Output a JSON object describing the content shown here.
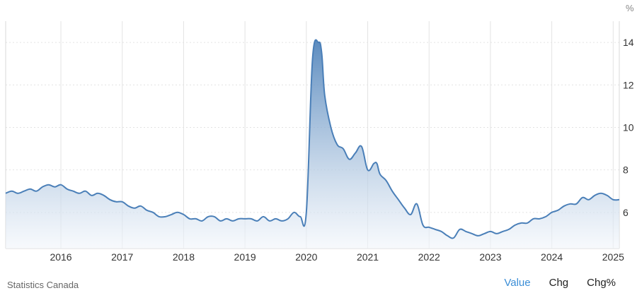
{
  "footer": {
    "source": "Statistics Canada",
    "tabs": [
      {
        "label": "Value",
        "active": true
      },
      {
        "label": "Chg",
        "active": false
      },
      {
        "label": "Chg%",
        "active": false
      }
    ]
  },
  "colors": {
    "line": "#4a7fb8",
    "fill_top": "#4a7fb8",
    "fill_bottom": "#f2f6fb",
    "grid": "#e3e3e3",
    "active_tab": "#3a8dd6"
  },
  "chart_data": {
    "type": "area",
    "unit": "%",
    "grid": true,
    "legend": "none",
    "x_ticks": [
      "2016",
      "2017",
      "2018",
      "2019",
      "2020",
      "2021",
      "2022",
      "2023",
      "2024",
      "2025"
    ],
    "y_ticks": [
      "6",
      "8",
      "10",
      "12",
      "14"
    ],
    "xlim": [
      2015.1,
      2025.1
    ],
    "ylim": [
      4.3,
      15.0
    ],
    "series": [
      {
        "x": [
          2015.1,
          2015.2,
          2015.3,
          2015.4,
          2015.5,
          2015.6,
          2015.7,
          2015.8,
          2015.9,
          2016.0,
          2016.1,
          2016.2,
          2016.3,
          2016.4,
          2016.5,
          2016.6,
          2016.7,
          2016.8,
          2016.9,
          2017.0,
          2017.1,
          2017.2,
          2017.3,
          2017.4,
          2017.5,
          2017.6,
          2017.7,
          2017.8,
          2017.9,
          2018.0,
          2018.1,
          2018.2,
          2018.3,
          2018.4,
          2018.5,
          2018.6,
          2018.7,
          2018.8,
          2018.9,
          2019.0,
          2019.1,
          2019.2,
          2019.3,
          2019.4,
          2019.5,
          2019.6,
          2019.7,
          2019.8,
          2019.9,
          2020.0,
          2020.1,
          2020.2,
          2020.25,
          2020.3,
          2020.4,
          2020.5,
          2020.6,
          2020.7,
          2020.8,
          2020.9,
          2021.0,
          2021.1,
          2021.15,
          2021.2,
          2021.3,
          2021.4,
          2021.5,
          2021.6,
          2021.7,
          2021.8,
          2021.9,
          2022.0,
          2022.1,
          2022.2,
          2022.3,
          2022.4,
          2022.5,
          2022.6,
          2022.7,
          2022.8,
          2022.9,
          2023.0,
          2023.1,
          2023.2,
          2023.3,
          2023.4,
          2023.5,
          2023.6,
          2023.7,
          2023.8,
          2023.9,
          2024.0,
          2024.1,
          2024.2,
          2024.3,
          2024.4,
          2024.5,
          2024.6,
          2024.7,
          2024.8,
          2024.9,
          2025.0,
          2025.1
        ],
        "values": [
          6.9,
          7.0,
          6.9,
          7.0,
          7.1,
          7.0,
          7.2,
          7.3,
          7.2,
          7.3,
          7.1,
          7.0,
          6.9,
          7.0,
          6.8,
          6.9,
          6.8,
          6.6,
          6.5,
          6.5,
          6.3,
          6.2,
          6.3,
          6.1,
          6.0,
          5.8,
          5.8,
          5.9,
          6.0,
          5.9,
          5.7,
          5.7,
          5.6,
          5.8,
          5.8,
          5.6,
          5.7,
          5.6,
          5.7,
          5.7,
          5.7,
          5.6,
          5.8,
          5.6,
          5.7,
          5.6,
          5.7,
          6.0,
          5.8,
          6.0,
          13.2,
          14.0,
          13.5,
          11.5,
          10.0,
          9.2,
          9.0,
          8.5,
          8.8,
          9.1,
          8.0,
          8.3,
          8.3,
          7.8,
          7.5,
          7.0,
          6.6,
          6.2,
          5.9,
          6.4,
          5.4,
          5.3,
          5.2,
          5.1,
          4.9,
          4.8,
          5.2,
          5.1,
          5.0,
          4.9,
          5.0,
          5.1,
          5.0,
          5.1,
          5.2,
          5.4,
          5.5,
          5.5,
          5.7,
          5.7,
          5.8,
          6.0,
          6.1,
          6.3,
          6.4,
          6.4,
          6.7,
          6.6,
          6.8,
          6.9,
          6.8,
          6.6,
          6.6
        ]
      }
    ]
  }
}
